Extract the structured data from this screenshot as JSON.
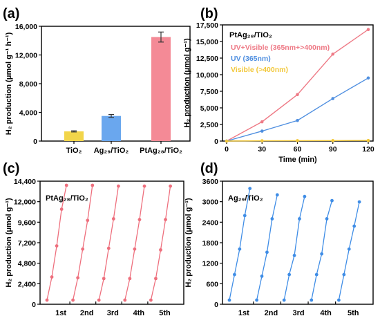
{
  "panel_labels": [
    "(a)",
    "(b)",
    "(c)",
    "(d)"
  ],
  "colors": {
    "tio2": "#f2d54a",
    "ag": "#6aa7ee",
    "ptag": "#f48a96",
    "uvvis": "#ee7a86",
    "uv": "#4f8fe0",
    "vis": "#f2c83a",
    "c_line": "#ee6f7d",
    "d_line": "#3f8de6",
    "axis": "#000000"
  },
  "chart_data": [
    {
      "type": "bar",
      "panel": "a",
      "categories": [
        "TiO₂",
        "Ag₂₉/TiO₂",
        "PtAg₂₈/TiO₂"
      ],
      "values": [
        1350,
        3500,
        14500
      ],
      "errors": [
        80,
        200,
        700
      ],
      "ylabel": "H₂ production (μmol g⁻¹ h⁻¹)",
      "yticks": [
        "0",
        "4,000",
        "8,000",
        "12,000",
        "16,000"
      ],
      "ylim": [
        0,
        16000
      ]
    },
    {
      "type": "line",
      "panel": "b",
      "title": "PtAg₂₈/TiO₂",
      "x": [
        0,
        30,
        60,
        90,
        120
      ],
      "series": [
        {
          "name": "UV+Visible (365nm+>400nm)",
          "values": [
            0,
            2900,
            7000,
            13100,
            16800
          ]
        },
        {
          "name": "UV (365nm)",
          "values": [
            0,
            1500,
            3100,
            6400,
            9500
          ]
        },
        {
          "name": "Visible (>400nm)",
          "values": [
            0,
            50,
            60,
            70,
            90
          ]
        }
      ],
      "xlabel": "Time (min)",
      "ylabel": "H₂ production (μmol g⁻¹)",
      "xticks": [
        "0",
        "30",
        "60",
        "90",
        "120"
      ],
      "yticks": [
        "0",
        "2,500",
        "5,000",
        "7,500",
        "10,000",
        "12,500",
        "15,000",
        "17,500"
      ],
      "xlim": [
        0,
        120
      ],
      "ylim": [
        0,
        17500
      ],
      "legend": "top-left"
    },
    {
      "type": "line",
      "panel": "c",
      "title": "PtAg₂₈/TiO₂",
      "cycles": [
        "1st",
        "2nd",
        "3rd",
        "4th",
        "5th"
      ],
      "cycle_values": [
        [
          0,
          2900,
          6800,
          11400,
          14400
        ],
        [
          0,
          2800,
          6400,
          10000,
          14400
        ],
        [
          0,
          2700,
          6500,
          10200,
          14300
        ],
        [
          0,
          2700,
          6400,
          10100,
          14300
        ],
        [
          0,
          2700,
          6300,
          10100,
          14300
        ]
      ],
      "ylabel": "H₂ production (μmol g⁻¹)",
      "yticks": [
        "0",
        "2,400",
        "4,800",
        "7,200",
        "9,600",
        "12,000",
        "14,400"
      ],
      "ylim": [
        0,
        14400
      ]
    },
    {
      "type": "line",
      "panel": "d",
      "title": "Ag₂₉/TiO₂",
      "cycles": [
        "1st",
        "2nd",
        "3rd",
        "4th",
        "5th"
      ],
      "cycle_values": [
        [
          0,
          800,
          1600,
          2650,
          3500
        ],
        [
          0,
          750,
          1500,
          2550,
          3300
        ],
        [
          0,
          800,
          1400,
          2550,
          3250
        ],
        [
          0,
          800,
          1450,
          2550,
          3120
        ],
        [
          0,
          800,
          1600,
          2320,
          3080
        ]
      ],
      "ylabel": "H₂ production (μmol g⁻¹)",
      "yticks": [
        "0",
        "600",
        "1200",
        "1800",
        "2400",
        "3000",
        "3600"
      ],
      "ylim": [
        0,
        3600
      ]
    }
  ]
}
